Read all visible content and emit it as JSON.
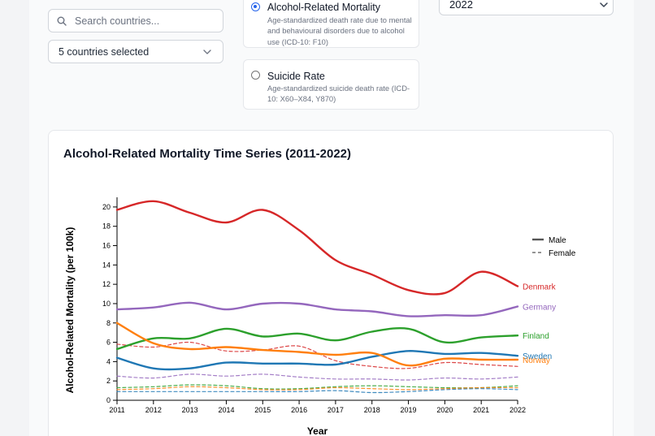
{
  "search": {
    "placeholder": "Search countries..."
  },
  "country_filter": {
    "selected_label": "5 countries selected"
  },
  "metrics": [
    {
      "label": "Alcohol-Related Mortality",
      "description": "Age-standardized death rate due to mental and behavioural disorders due to alcohol use (ICD-10: F10)",
      "selected": true
    },
    {
      "label": "Suicide Rate",
      "description": "Age-standardized suicide death rate (ICD-10: X60–X84, Y870)",
      "selected": false
    }
  ],
  "year_select": {
    "value": "2022"
  },
  "icons": {
    "search": "search-icon",
    "country_dropdown": "chevron-down-icon",
    "year_dropdown": "chevron-down-icon"
  },
  "chart_data": {
    "type": "line",
    "title": "Alcohol-Related Mortality Time Series (2011-2022)",
    "xlabel": "Year",
    "ylabel": "Alcohol-Related Mortality (per 100k)",
    "x": [
      2011,
      2012,
      2013,
      2014,
      2015,
      2016,
      2017,
      2018,
      2019,
      2020,
      2021,
      2022
    ],
    "xlim": [
      2011,
      2022
    ],
    "ylim": [
      0,
      21
    ],
    "yticks": [
      0,
      2,
      4,
      6,
      8,
      10,
      12,
      14,
      16,
      18,
      20
    ],
    "grid": false,
    "legend": {
      "position": "right",
      "entries": [
        {
          "label": "Male",
          "style": "solid"
        },
        {
          "label": "Female",
          "style": "dashed"
        }
      ]
    },
    "series": [
      {
        "name": "Denmark",
        "sex": "male",
        "color": "#d62728",
        "dash": false,
        "values": [
          19.7,
          20.6,
          19.4,
          18.4,
          19.7,
          17.6,
          14.5,
          13.0,
          11.4,
          11.1,
          13.3,
          11.8
        ]
      },
      {
        "name": "Germany",
        "sex": "male",
        "color": "#9467bd",
        "dash": false,
        "values": [
          9.4,
          9.6,
          10.1,
          9.4,
          10.0,
          10.0,
          9.4,
          9.2,
          8.7,
          8.8,
          8.8,
          9.7
        ]
      },
      {
        "name": "Finland",
        "sex": "male",
        "color": "#2ca02c",
        "dash": false,
        "values": [
          5.3,
          6.4,
          6.4,
          7.4,
          6.6,
          6.9,
          6.2,
          7.1,
          7.4,
          6.0,
          6.5,
          6.7
        ]
      },
      {
        "name": "Sweden",
        "sex": "male",
        "color": "#1f77b4",
        "dash": false,
        "values": [
          4.4,
          3.3,
          3.3,
          3.9,
          3.8,
          3.8,
          3.7,
          4.5,
          5.1,
          4.8,
          4.9,
          4.6
        ]
      },
      {
        "name": "Norway",
        "sex": "male",
        "color": "#ff7f0e",
        "dash": false,
        "values": [
          8.0,
          5.9,
          5.3,
          5.5,
          5.2,
          5.0,
          4.7,
          4.9,
          3.6,
          4.3,
          4.2,
          4.2
        ]
      },
      {
        "sex": "female",
        "color": "#d62728",
        "dash": true,
        "values": [
          5.8,
          5.5,
          6.0,
          5.1,
          5.2,
          5.6,
          4.1,
          3.5,
          3.3,
          3.9,
          3.7,
          3.5
        ]
      },
      {
        "sex": "female",
        "color": "#9467bd",
        "dash": true,
        "values": [
          2.5,
          2.3,
          2.7,
          2.5,
          2.7,
          2.4,
          2.2,
          2.2,
          2.1,
          2.3,
          2.2,
          2.4
        ]
      },
      {
        "sex": "female",
        "color": "#2ca02c",
        "dash": true,
        "values": [
          1.3,
          1.4,
          1.6,
          1.5,
          1.2,
          1.2,
          1.4,
          1.5,
          1.4,
          1.3,
          1.3,
          1.5
        ]
      },
      {
        "sex": "female",
        "color": "#1f77b4",
        "dash": true,
        "values": [
          0.9,
          0.9,
          0.9,
          0.9,
          0.9,
          0.9,
          1.0,
          0.8,
          0.9,
          1.1,
          1.2,
          1.1
        ]
      },
      {
        "sex": "female",
        "color": "#ff7f0e",
        "dash": true,
        "values": [
          1.1,
          1.2,
          1.4,
          1.3,
          1.1,
          1.1,
          1.3,
          1.2,
          1.1,
          1.2,
          1.3,
          1.3
        ]
      }
    ]
  }
}
